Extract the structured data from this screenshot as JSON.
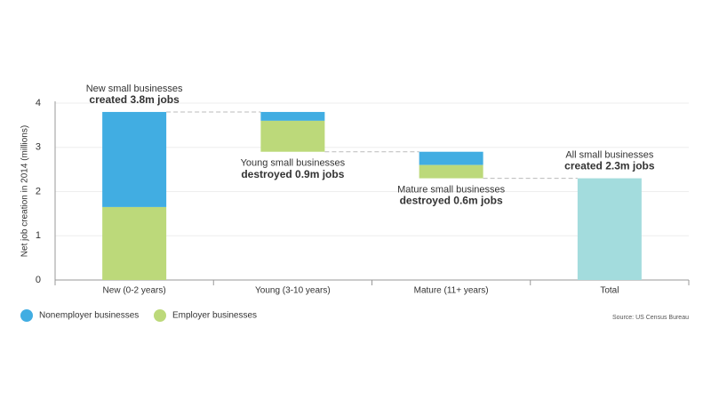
{
  "chart_data": {
    "type": "waterfall",
    "y_label": "Net job creation in 2014 (millions)",
    "categories": [
      "New (0-2 years)",
      "Young (3-10 years)",
      "Mature (11+ years)",
      "Total"
    ],
    "series": [
      {
        "name": "Nonemployer businesses",
        "color": "#41ade2",
        "values": [
          2.15,
          -0.2,
          -0.3,
          null
        ]
      },
      {
        "name": "Employer businesses",
        "color": "#bcd97a",
        "values": [
          1.65,
          -0.7,
          -0.3,
          null
        ]
      }
    ],
    "total": {
      "value": 2.3,
      "color": "#a3dcdd"
    },
    "annotations": [
      {
        "text": "New small businesses",
        "bold": "created 3.8m jobs"
      },
      {
        "text": "Young small businesses",
        "bold": "destroyed 0.9m jobs"
      },
      {
        "text": "Mature small businesses",
        "bold": "destroyed 0.6m jobs"
      },
      {
        "text": "All small businesses",
        "bold": "created 2.3m jobs"
      }
    ],
    "ylim": [
      0,
      4
    ],
    "yticks": [
      0,
      1,
      2,
      3,
      4
    ],
    "grid": true,
    "source": "Source: US Census Bureau"
  }
}
